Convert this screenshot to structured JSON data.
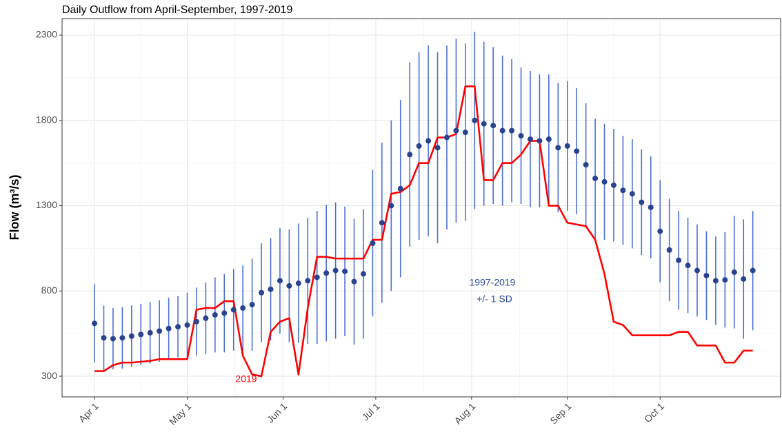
{
  "chart_data": {
    "type": "errorbar-line",
    "title": "Daily Outflow from April-September, 1997-2019",
    "ylabel": "Flow (m³/s)",
    "annotations": [
      "1997-2019",
      "+/- 1 SD",
      "2019"
    ],
    "x": [
      0,
      3,
      6,
      9,
      12,
      15,
      18,
      21,
      24,
      27,
      30,
      33,
      36,
      39,
      42,
      45,
      48,
      51,
      54,
      57,
      60,
      63,
      66,
      69,
      72,
      75,
      78,
      81,
      84,
      87,
      90,
      93,
      96,
      99,
      102,
      105,
      108,
      111,
      114,
      117,
      120,
      123,
      126,
      129,
      132,
      135,
      138,
      141,
      144,
      147,
      150,
      153,
      156,
      159,
      162,
      165,
      168,
      171,
      174,
      177,
      180,
      183,
      186,
      189,
      192,
      195,
      198,
      201,
      204,
      207,
      210,
      213
    ],
    "series": [
      {
        "color": "#2a438f",
        "error_color": "#4a6fd4",
        "values": [
          610,
          525,
          520,
          525,
          535,
          545,
          555,
          565,
          580,
          590,
          600,
          620,
          640,
          660,
          670,
          690,
          700,
          720,
          790,
          810,
          860,
          830,
          845,
          860,
          880,
          905,
          920,
          915,
          855,
          900,
          1080,
          1200,
          1300,
          1400,
          1600,
          1650,
          1680,
          1640,
          1700,
          1740,
          1730,
          1800,
          1780,
          1770,
          1740,
          1740,
          1710,
          1690,
          1680,
          1690,
          1640,
          1650,
          1620,
          1540,
          1460,
          1440,
          1420,
          1390,
          1370,
          1320,
          1290,
          1150,
          1040,
          980,
          950,
          920,
          890,
          860,
          865,
          910,
          870,
          920
        ],
        "sd": [
          230,
          190,
          180,
          180,
          180,
          180,
          180,
          180,
          180,
          180,
          190,
          200,
          210,
          220,
          230,
          240,
          250,
          270,
          290,
          300,
          310,
          330,
          350,
          370,
          390,
          400,
          400,
          380,
          370,
          380,
          430,
          470,
          500,
          520,
          540,
          550,
          560,
          560,
          540,
          540,
          520,
          520,
          480,
          460,
          440,
          420,
          400,
          400,
          390,
          380,
          380,
          380,
          370,
          360,
          350,
          340,
          330,
          320,
          320,
          310,
          300,
          300,
          300,
          290,
          280,
          270,
          260,
          260,
          280,
          330,
          350,
          350
        ]
      },
      {
        "color": "#ff0000",
        "values": [
          330,
          330,
          365,
          380,
          380,
          385,
          390,
          400,
          400,
          400,
          400,
          690,
          700,
          700,
          740,
          740,
          420,
          310,
          300,
          560,
          620,
          640,
          310,
          700,
          1000,
          1000,
          990,
          990,
          990,
          990,
          1100,
          1100,
          1370,
          1380,
          1420,
          1550,
          1550,
          1700,
          1700,
          1720,
          2000,
          2000,
          1450,
          1450,
          1550,
          1550,
          1600,
          1680,
          1680,
          1300,
          1300,
          1200,
          1190,
          1180,
          1100,
          900,
          620,
          600,
          540,
          540,
          540,
          540,
          540,
          560,
          560,
          480,
          480,
          480,
          380,
          380,
          450,
          450
        ]
      }
    ],
    "xlim": [
      -10.5,
      222
    ],
    "xticks": [
      {
        "value": 0,
        "label": "Apr 1"
      },
      {
        "value": 30,
        "label": "May 1"
      },
      {
        "value": 61,
        "label": "Jun 1"
      },
      {
        "value": 91,
        "label": "Jul 1"
      },
      {
        "value": 122,
        "label": "Aug 1"
      },
      {
        "value": 153,
        "label": "Sep 1"
      },
      {
        "value": 183,
        "label": "Oct 1"
      }
    ],
    "ylim": [
      179,
      2397
    ],
    "yticks": [
      300,
      800,
      1300,
      1800,
      2300
    ],
    "grid": true
  }
}
